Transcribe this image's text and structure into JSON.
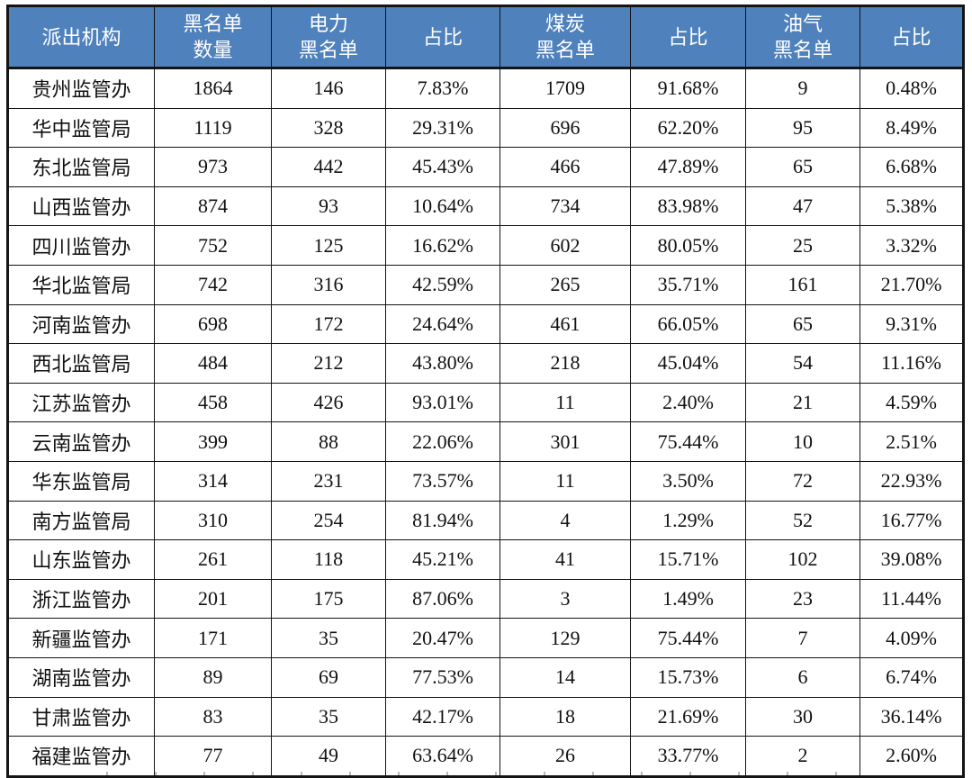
{
  "colors": {
    "header_bg": "#4f81bd",
    "header_text": "#ffffff",
    "grid_border": "#141414",
    "body_text": "#111111"
  },
  "table": {
    "header": [
      {
        "key": "agency",
        "lines": [
          "派出机构"
        ]
      },
      {
        "key": "total",
        "lines": [
          "黑名单",
          "数量"
        ]
      },
      {
        "key": "power",
        "lines": [
          "电力",
          "黑名单"
        ]
      },
      {
        "key": "power-ratio",
        "lines": [
          "占比"
        ]
      },
      {
        "key": "coal",
        "lines": [
          "煤炭",
          "黑名单"
        ]
      },
      {
        "key": "coal-ratio",
        "lines": [
          "占比"
        ]
      },
      {
        "key": "oil-gas",
        "lines": [
          "油气",
          "黑名单"
        ]
      },
      {
        "key": "oil-gas-ratio",
        "lines": [
          "占比"
        ]
      }
    ],
    "rows": [
      [
        "贵州监管办",
        "1864",
        "146",
        "7.83%",
        "1709",
        "91.68%",
        "9",
        "0.48%"
      ],
      [
        "华中监管局",
        "1119",
        "328",
        "29.31%",
        "696",
        "62.20%",
        "95",
        "8.49%"
      ],
      [
        "东北监管局",
        "973",
        "442",
        "45.43%",
        "466",
        "47.89%",
        "65",
        "6.68%"
      ],
      [
        "山西监管办",
        "874",
        "93",
        "10.64%",
        "734",
        "83.98%",
        "47",
        "5.38%"
      ],
      [
        "四川监管办",
        "752",
        "125",
        "16.62%",
        "602",
        "80.05%",
        "25",
        "3.32%"
      ],
      [
        "华北监管局",
        "742",
        "316",
        "42.59%",
        "265",
        "35.71%",
        "161",
        "21.70%"
      ],
      [
        "河南监管办",
        "698",
        "172",
        "24.64%",
        "461",
        "66.05%",
        "65",
        "9.31%"
      ],
      [
        "西北监管局",
        "484",
        "212",
        "43.80%",
        "218",
        "45.04%",
        "54",
        "11.16%"
      ],
      [
        "江苏监管办",
        "458",
        "426",
        "93.01%",
        "11",
        "2.40%",
        "21",
        "4.59%"
      ],
      [
        "云南监管办",
        "399",
        "88",
        "22.06%",
        "301",
        "75.44%",
        "10",
        "2.51%"
      ],
      [
        "华东监管局",
        "314",
        "231",
        "73.57%",
        "11",
        "3.50%",
        "72",
        "22.93%"
      ],
      [
        "南方监管局",
        "310",
        "254",
        "81.94%",
        "4",
        "1.29%",
        "52",
        "16.77%"
      ],
      [
        "山东监管办",
        "261",
        "118",
        "45.21%",
        "41",
        "15.71%",
        "102",
        "39.08%"
      ],
      [
        "浙江监管办",
        "201",
        "175",
        "87.06%",
        "3",
        "1.49%",
        "23",
        "11.44%"
      ],
      [
        "新疆监管办",
        "171",
        "35",
        "20.47%",
        "129",
        "75.44%",
        "7",
        "4.09%"
      ],
      [
        "湖南监管办",
        "89",
        "69",
        "77.53%",
        "14",
        "15.73%",
        "6",
        "6.74%"
      ],
      [
        "甘肃监管办",
        "83",
        "35",
        "42.17%",
        "18",
        "21.69%",
        "30",
        "36.14%"
      ],
      [
        "福建监管办",
        "77",
        "49",
        "63.64%",
        "26",
        "33.77%",
        "2",
        "2.60%"
      ]
    ]
  }
}
